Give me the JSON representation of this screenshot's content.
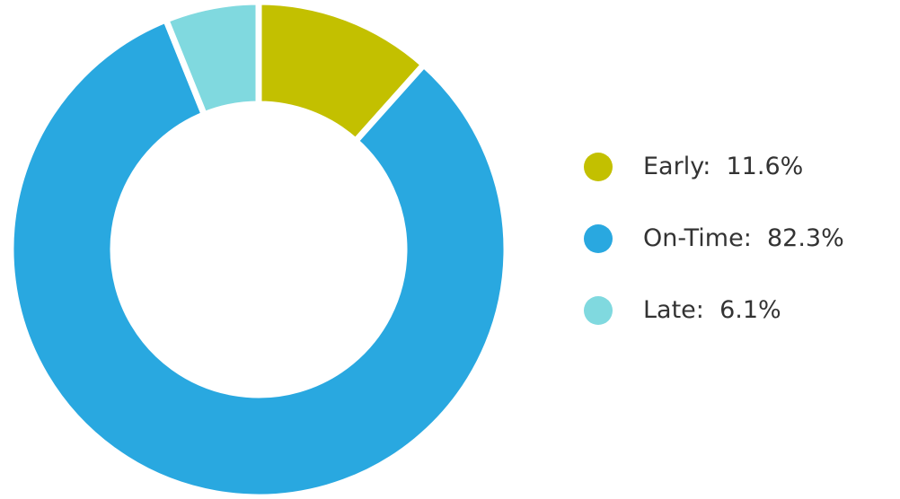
{
  "chart_data": {
    "type": "pie",
    "variant": "donut",
    "slices": [
      {
        "label": "Early",
        "value": 11.6,
        "display": "11.6%",
        "color": "#c3c000"
      },
      {
        "label": "On-Time",
        "value": 82.3,
        "display": "82.3%",
        "color": "#29a8e0"
      },
      {
        "label": "Late",
        "value": 6.1,
        "display": "6.1%",
        "color": "#80d9df"
      }
    ],
    "legend_position": "right",
    "start_angle_deg": 0,
    "direction": "clockwise"
  }
}
